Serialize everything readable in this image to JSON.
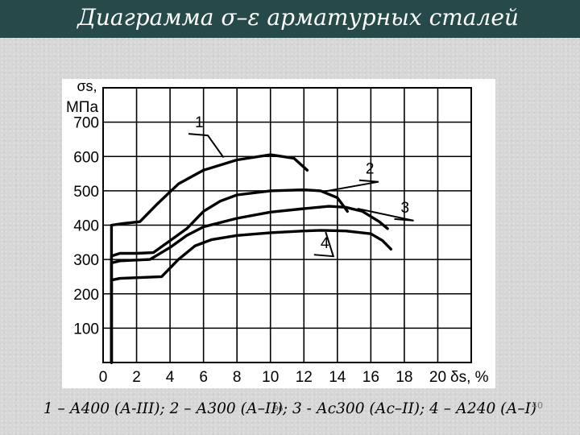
{
  "slide": {
    "title": "Диаграмма σ–ε арматурных сталей",
    "caption": "1 – А400 (А-III); 2 – А300 (А–II); 3 - Ас300 (Ас–II); 4 – А240 (А–I)",
    "slide_number": "40",
    "small_mark": "96"
  },
  "chart_data": {
    "type": "line",
    "title": "",
    "ylabel": "σs, МПа",
    "ylabel_line1": "σs,",
    "ylabel_line2": "МПа",
    "xlabel": "δs, %",
    "xlim": [
      0,
      22
    ],
    "ylim": [
      0,
      800
    ],
    "x_ticks": [
      0,
      2,
      4,
      6,
      8,
      10,
      12,
      14,
      16,
      18,
      20
    ],
    "y_ticks": [
      100,
      200,
      300,
      400,
      500,
      600,
      700
    ],
    "x_tick_labels": [
      "0",
      "2",
      "4",
      "6",
      "8",
      "10",
      "12",
      "14",
      "16",
      "18",
      "20"
    ],
    "y_tick_labels": [
      "100",
      "200",
      "300",
      "400",
      "500",
      "600",
      "700"
    ],
    "grid": true,
    "series": [
      {
        "name": "1",
        "points": [
          [
            0.5,
            0
          ],
          [
            0.5,
            400
          ],
          [
            1.2,
            405
          ],
          [
            2.2,
            410
          ],
          [
            3.2,
            460
          ],
          [
            4.5,
            520
          ],
          [
            6,
            560
          ],
          [
            8,
            590
          ],
          [
            10,
            605
          ],
          [
            11.4,
            595
          ],
          [
            12.2,
            560
          ]
        ]
      },
      {
        "name": "2",
        "points": [
          [
            0.5,
            0
          ],
          [
            0.5,
            310
          ],
          [
            1,
            318
          ],
          [
            2,
            318
          ],
          [
            3,
            320
          ],
          [
            4,
            355
          ],
          [
            5,
            390
          ],
          [
            6,
            440
          ],
          [
            7,
            470
          ],
          [
            8,
            488
          ],
          [
            10,
            500
          ],
          [
            12,
            503
          ],
          [
            13,
            500
          ],
          [
            14,
            480
          ],
          [
            14.6,
            440
          ]
        ]
      },
      {
        "name": "3",
        "points": [
          [
            0.5,
            0
          ],
          [
            0.5,
            290
          ],
          [
            1,
            296
          ],
          [
            2.8,
            300
          ],
          [
            4,
            335
          ],
          [
            5,
            370
          ],
          [
            6,
            395
          ],
          [
            8,
            420
          ],
          [
            10,
            438
          ],
          [
            12,
            448
          ],
          [
            13.5,
            455
          ],
          [
            14.5,
            452
          ],
          [
            15.5,
            440
          ],
          [
            16.5,
            410
          ],
          [
            17,
            390
          ]
        ]
      },
      {
        "name": "4",
        "points": [
          [
            0.5,
            0
          ],
          [
            0.5,
            240
          ],
          [
            1,
            245
          ],
          [
            3.5,
            250
          ],
          [
            4.5,
            300
          ],
          [
            5.5,
            340
          ],
          [
            6.5,
            358
          ],
          [
            8,
            370
          ],
          [
            10,
            378
          ],
          [
            12,
            383
          ],
          [
            13,
            385
          ],
          [
            14.5,
            383
          ],
          [
            16,
            375
          ],
          [
            16.7,
            355
          ],
          [
            17.2,
            330
          ]
        ]
      }
    ],
    "series_labels": [
      {
        "name": "1",
        "label_at": [
          5.2,
          680
        ],
        "leader_to": [
          7.2,
          597
        ]
      },
      {
        "name": "2",
        "label_at": [
          15.4,
          545
        ],
        "leader_to": [
          13.2,
          498
        ]
      },
      {
        "name": "3",
        "label_at": [
          17.5,
          432
        ],
        "leader_to": [
          15.2,
          448
        ]
      },
      {
        "name": "4",
        "label_at": [
          12.7,
          328
        ],
        "leader_to": [
          13.3,
          380
        ]
      }
    ]
  }
}
